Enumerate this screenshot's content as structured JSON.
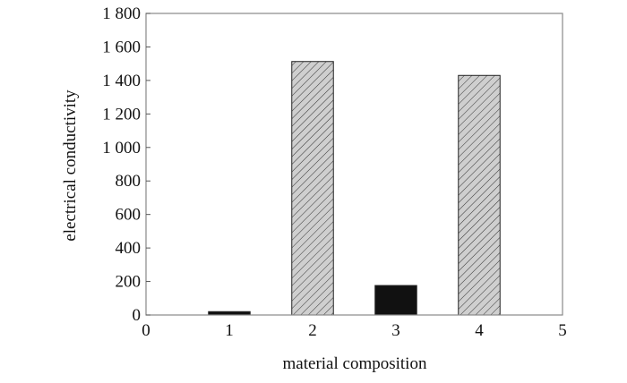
{
  "chart_data": {
    "type": "bar",
    "title": "",
    "xlabel": "material composition",
    "ylabel": "electrical conductivity",
    "xlim": [
      0,
      5
    ],
    "ylim": [
      0,
      1800
    ],
    "x_ticks": [
      "0",
      "1",
      "2",
      "3",
      "4",
      "5"
    ],
    "y_ticks": [
      "0",
      "200",
      "400",
      "600",
      "800",
      "1 000",
      "1 200",
      "1 400",
      "1 600",
      "1 800"
    ],
    "grid": false,
    "legend": "none",
    "bar_width": 0.5,
    "bars": [
      {
        "x": 1,
        "value": 20,
        "fill": "solid-black"
      },
      {
        "x": 2,
        "value": 1513,
        "fill": "hatched-gray"
      },
      {
        "x": 3,
        "value": 176,
        "fill": "solid-black"
      },
      {
        "x": 4,
        "value": 1430,
        "fill": "hatched-gray"
      }
    ],
    "colors": {
      "solid": "#111111",
      "hatch_bg": "#cfcfcf",
      "hatch_line": "#333333",
      "frame": "#888888"
    }
  }
}
